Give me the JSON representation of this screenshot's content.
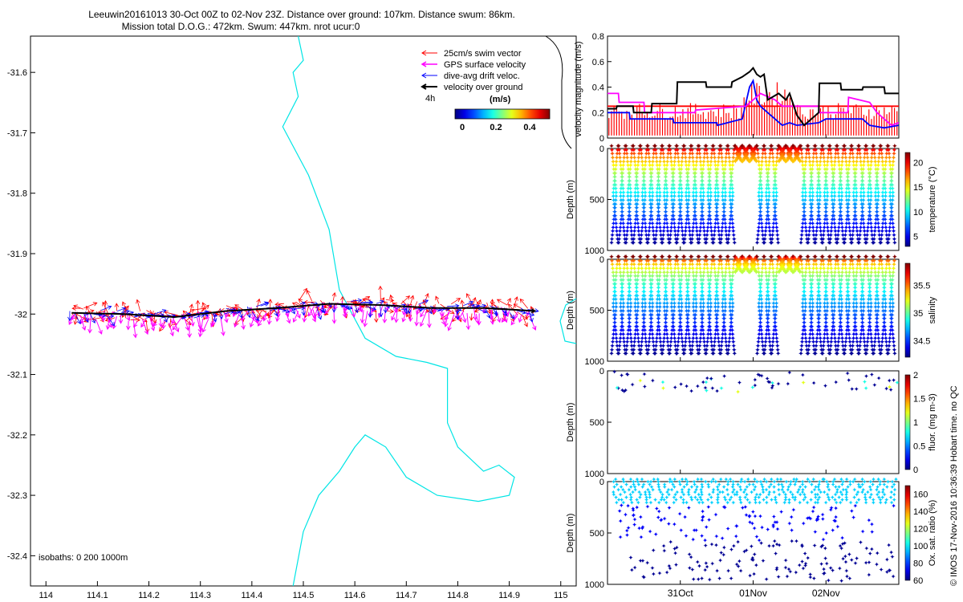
{
  "title": {
    "line1": "Leeuwin20161013 30-Oct 00Z to 02-Nov 23Z. Distance over ground: 107km. Distance swum: 86km.",
    "line2": "Mission total D.O.G.: 472km. Swum: 447km. nrot ucur:0"
  },
  "watermark": "© IMOS 17-Nov-2016 10:36:39 Hobart time. no QC",
  "colors": {
    "swim": "#ff0000",
    "gps": "#ff00ff",
    "drift": "#0000ff",
    "dog": "#000000",
    "coast": "#00e5e5"
  },
  "chart_data": [
    {
      "id": "map",
      "type": "scatter",
      "xlim": [
        113.97,
        115.03
      ],
      "ylim": [
        -32.45,
        -31.54
      ],
      "x_ticks": [
        114,
        114.1,
        114.2,
        114.3,
        114.4,
        114.5,
        114.6,
        114.7,
        114.8,
        114.9,
        115
      ],
      "x_tick_labels": [
        "114",
        "114.1",
        "114.2",
        "114.3",
        "114.4",
        "114.5",
        "114.6",
        "114.7",
        "114.8",
        "114.9",
        "115"
      ],
      "y_ticks": [
        -31.6,
        -31.7,
        -31.8,
        -31.9,
        -32,
        -32.1,
        -32.2,
        -32.3,
        -32.4
      ],
      "y_tick_labels": [
        "-31.6",
        "-31.7",
        "-31.8",
        "-31.9",
        "-32",
        "-32.1",
        "-32.2",
        "-32.3",
        "-32.4"
      ],
      "legend": [
        "25cm/s swim vector",
        "GPS surface velocity",
        "dive-avg drift veloc.",
        "velocity over ground"
      ],
      "legend_note": "4h",
      "colorbar_title": "(m/s)",
      "colorbar_ticks": [
        "0",
        "0.2",
        "0.4"
      ],
      "isobaths_label": "isobaths: 0   200  1000m",
      "track": [
        [
          114.05,
          -31.998
        ],
        [
          114.15,
          -32.0
        ],
        [
          114.25,
          -32.005
        ],
        [
          114.35,
          -31.995
        ],
        [
          114.45,
          -31.99
        ],
        [
          114.55,
          -31.983
        ],
        [
          114.65,
          -31.985
        ],
        [
          114.75,
          -31.99
        ],
        [
          114.85,
          -31.99
        ],
        [
          114.95,
          -31.995
        ]
      ],
      "coast": [
        [
          114.49,
          -31.54
        ],
        [
          114.5,
          -31.58
        ],
        [
          114.48,
          -31.6
        ],
        [
          114.49,
          -31.64
        ],
        [
          114.46,
          -31.69
        ],
        [
          114.51,
          -31.77
        ],
        [
          114.55,
          -31.86
        ],
        [
          114.57,
          -31.96
        ],
        [
          114.62,
          -32.04
        ],
        [
          114.68,
          -32.07
        ],
        [
          114.74,
          -32.08
        ],
        [
          114.78,
          -32.09
        ],
        [
          114.78,
          -32.18
        ],
        [
          114.8,
          -32.22
        ],
        [
          114.85,
          -32.26
        ],
        [
          114.88,
          -32.25
        ],
        [
          114.91,
          -32.27
        ],
        [
          114.9,
          -32.3
        ],
        [
          114.84,
          -32.31
        ],
        [
          114.76,
          -32.3
        ],
        [
          114.7,
          -32.27
        ],
        [
          114.66,
          -32.22
        ],
        [
          114.62,
          -32.2
        ],
        [
          114.6,
          -32.22
        ],
        [
          114.57,
          -32.26
        ],
        [
          114.53,
          -32.3
        ],
        [
          114.5,
          -32.36
        ],
        [
          114.48,
          -32.45
        ]
      ]
    },
    {
      "id": "velocity",
      "type": "line",
      "ylabel": "velocity magnitude (m/s)",
      "ylim": [
        0,
        0.8
      ],
      "y_tick_labels": [
        "0",
        "0.2",
        "0.4",
        "0.6",
        "0.8"
      ],
      "x_tick_labels": [
        "31Oct",
        "01Nov",
        "02Nov"
      ],
      "x_ticks_days": [
        1,
        2,
        3
      ],
      "xlim_days": [
        0,
        4
      ],
      "series": [
        {
          "name": "velocity over ground",
          "color": "#000000",
          "t": [
            0,
            0.12,
            0.13,
            0.35,
            0.36,
            0.6,
            0.61,
            0.95,
            0.96,
            1.35,
            1.36,
            1.7,
            1.71,
            1.85,
            1.95,
            2.0,
            2.05,
            2.1,
            2.15,
            2.2,
            2.35,
            2.45,
            2.5,
            2.6,
            2.7,
            2.8,
            2.9,
            2.91,
            3.2,
            3.21,
            3.5,
            3.51,
            3.8,
            3.81,
            4.0
          ],
          "v": [
            0.23,
            0.23,
            0.25,
            0.25,
            0.2,
            0.2,
            0.27,
            0.27,
            0.44,
            0.44,
            0.4,
            0.4,
            0.44,
            0.48,
            0.52,
            0.55,
            0.5,
            0.48,
            0.5,
            0.3,
            0.35,
            0.3,
            0.35,
            0.18,
            0.1,
            0.15,
            0.2,
            0.43,
            0.43,
            0.38,
            0.38,
            0.4,
            0.4,
            0.35,
            0.35
          ]
        },
        {
          "name": "GPS surface velocity",
          "color": "#ff00ff",
          "t": [
            0,
            0.15,
            0.16,
            0.5,
            0.51,
            1.2,
            1.21,
            1.9,
            2.0,
            2.1,
            2.3,
            2.4,
            2.6,
            2.9,
            2.91,
            3.3,
            3.31,
            3.6,
            3.7,
            3.8,
            3.9,
            4.0
          ],
          "v": [
            0.35,
            0.35,
            0.28,
            0.28,
            0.2,
            0.2,
            0.22,
            0.25,
            0.3,
            0.35,
            0.3,
            0.25,
            0.25,
            0.25,
            0.2,
            0.2,
            0.32,
            0.28,
            0.2,
            0.15,
            0.1,
            0.12
          ]
        },
        {
          "name": "dive-avg drift veloc.",
          "color": "#0000ff",
          "t": [
            0,
            0.3,
            0.31,
            0.9,
            0.91,
            1.5,
            1.51,
            1.85,
            1.95,
            2.0,
            2.05,
            2.1,
            2.2,
            2.3,
            2.4,
            2.5,
            2.6,
            2.9,
            3.0,
            3.5,
            3.6,
            3.8,
            4.0
          ],
          "v": [
            0.2,
            0.2,
            0.15,
            0.15,
            0.12,
            0.12,
            0.1,
            0.15,
            0.4,
            0.45,
            0.3,
            0.25,
            0.2,
            0.15,
            0.1,
            0.12,
            0.1,
            0.12,
            0.15,
            0.15,
            0.1,
            0.08,
            0.1
          ]
        },
        {
          "name": "25cm/s swim vector",
          "color": "#ff0000",
          "t": [
            0,
            4
          ],
          "v": [
            0.25,
            0.25
          ]
        }
      ]
    },
    {
      "id": "temperature",
      "type": "heatmap",
      "ylabel": "Depth (m)",
      "ylim": [
        1000,
        0
      ],
      "y_tick_labels": [
        "0",
        "500",
        "1000"
      ],
      "colorbar_label": "temperature (°C)",
      "colorbar_range": [
        3,
        22
      ],
      "colorbar_ticks": [
        "5",
        "10",
        "15",
        "20"
      ]
    },
    {
      "id": "salinity",
      "type": "heatmap",
      "ylabel": "Depth (m)",
      "ylim": [
        1000,
        0
      ],
      "y_tick_labels": [
        "0",
        "500",
        "1000"
      ],
      "colorbar_label": "salinity",
      "colorbar_range": [
        34.2,
        35.9
      ],
      "colorbar_ticks": [
        "34.5",
        "35",
        "35.5"
      ]
    },
    {
      "id": "fluorescence",
      "type": "scatter",
      "ylabel": "Depth (m)",
      "ylim": [
        1000,
        0
      ],
      "y_tick_labels": [
        "0",
        "500",
        "1000"
      ],
      "colorbar_label": "fluor. (mg m-3)",
      "colorbar_range": [
        0,
        2
      ],
      "colorbar_ticks": [
        "0",
        "0.5",
        "1",
        "1.5",
        "2"
      ]
    },
    {
      "id": "oxygen",
      "type": "scatter",
      "ylabel": "Depth (m)",
      "ylim": [
        1000,
        0
      ],
      "y_tick_labels": [
        "0",
        "500",
        "1000"
      ],
      "colorbar_label": "Ox. sat. ratio (%)",
      "colorbar_range": [
        60,
        170
      ],
      "colorbar_ticks": [
        "60",
        "80",
        "100",
        "120",
        "140",
        "160"
      ]
    }
  ]
}
